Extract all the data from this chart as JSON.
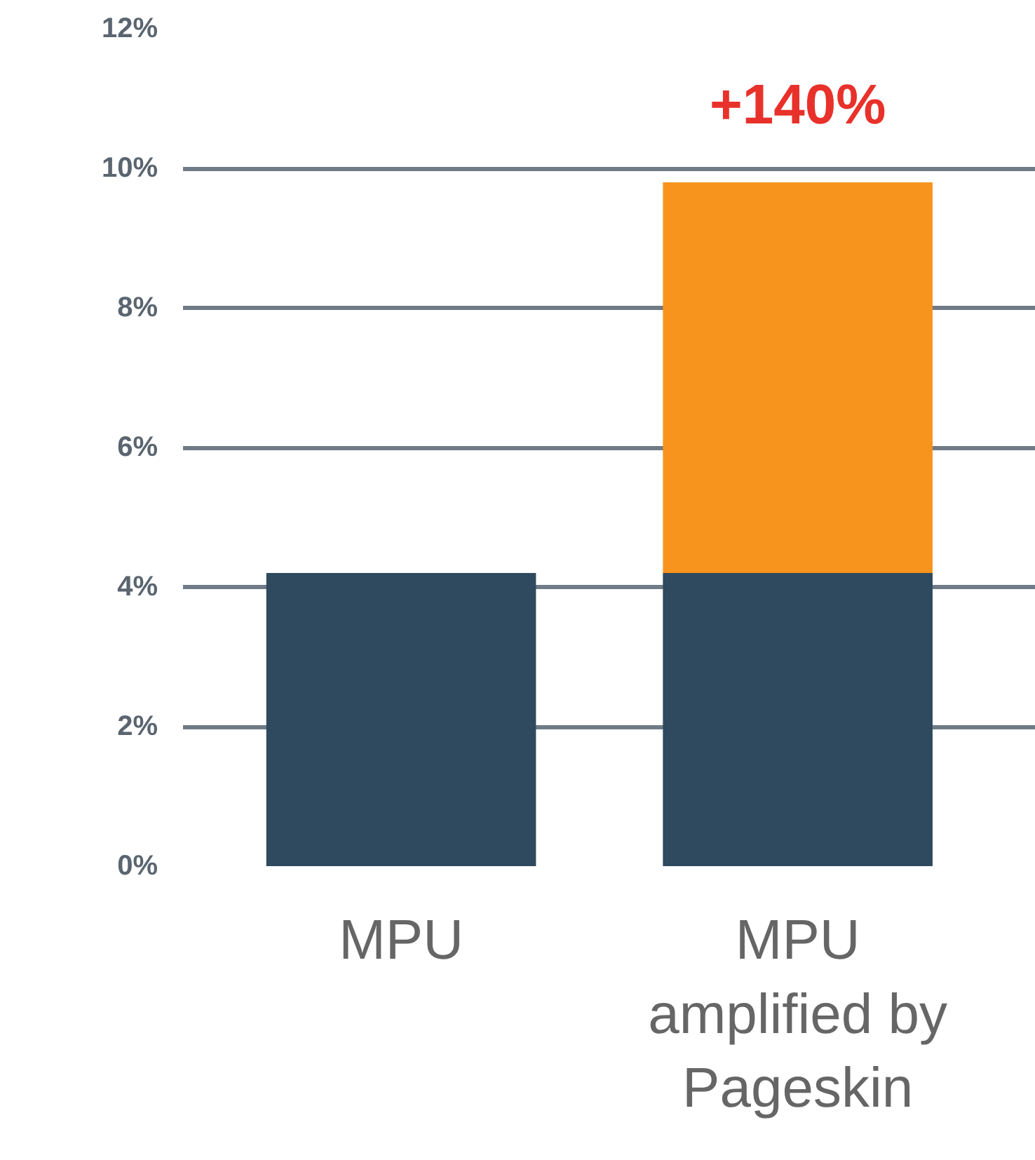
{
  "chart_data": {
    "type": "bar",
    "stacked": true,
    "categories": [
      "MPU",
      "MPU\namplified by\nPageskin"
    ],
    "series": [
      {
        "color": "#2f4a5e",
        "values": [
          4.2,
          4.2
        ]
      },
      {
        "color": "#f7941d",
        "values": [
          null,
          5.6
        ]
      }
    ],
    "ylim": [
      0,
      12
    ],
    "yticks": [
      {
        "value": 0,
        "label": "0%"
      },
      {
        "value": 2,
        "label": "2%"
      },
      {
        "value": 4,
        "label": "4%"
      },
      {
        "value": 6,
        "label": "6%"
      },
      {
        "value": 8,
        "label": "8%"
      },
      {
        "value": 10,
        "label": "10%"
      },
      {
        "value": 12,
        "label": "12%"
      }
    ],
    "grid": "y",
    "annotations": [
      "+140%"
    ]
  }
}
